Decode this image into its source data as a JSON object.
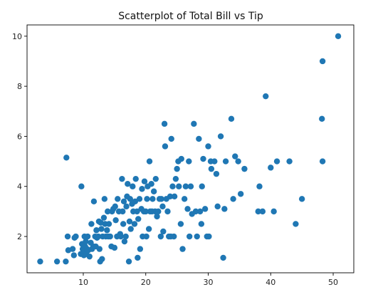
{
  "chart_data": {
    "type": "scatter",
    "title": "Scatterplot of Total Bill vs Tip",
    "xlabel": "",
    "ylabel": "",
    "xlim": [
      1.0,
      53.3
    ],
    "ylim": [
      0.55,
      10.45
    ],
    "xticks": [
      "10",
      "20",
      "30",
      "40",
      "50"
    ],
    "yticks": [
      "2",
      "4",
      "6",
      "8",
      "10"
    ],
    "grid": false,
    "marker_color": "#1f77b4",
    "points": [
      [
        3.1,
        1.0
      ],
      [
        5.8,
        1.0
      ],
      [
        7.2,
        1.0
      ],
      [
        7.3,
        5.15
      ],
      [
        7.5,
        2.0
      ],
      [
        7.6,
        1.45
      ],
      [
        8.3,
        1.5
      ],
      [
        8.5,
        1.25
      ],
      [
        8.6,
        1.95
      ],
      [
        8.8,
        2.0
      ],
      [
        9.6,
        1.3
      ],
      [
        9.7,
        4.0
      ],
      [
        9.8,
        1.7
      ],
      [
        9.9,
        1.5
      ],
      [
        10.0,
        1.4
      ],
      [
        10.1,
        1.25
      ],
      [
        10.2,
        2.0
      ],
      [
        10.3,
        1.6
      ],
      [
        10.4,
        1.8
      ],
      [
        10.5,
        1.3
      ],
      [
        10.6,
        1.5
      ],
      [
        10.7,
        2.0
      ],
      [
        10.8,
        1.45
      ],
      [
        11.0,
        1.2
      ],
      [
        11.2,
        1.75
      ],
      [
        11.3,
        2.5
      ],
      [
        11.4,
        1.5
      ],
      [
        11.6,
        1.6
      ],
      [
        11.7,
        3.4
      ],
      [
        11.9,
        2.0
      ],
      [
        12.0,
        1.6
      ],
      [
        12.1,
        2.25
      ],
      [
        12.2,
        1.95
      ],
      [
        12.4,
        2.0
      ],
      [
        12.5,
        2.6
      ],
      [
        12.6,
        1.5
      ],
      [
        12.7,
        1.0
      ],
      [
        12.8,
        2.55
      ],
      [
        12.9,
        2.3
      ],
      [
        13.0,
        1.1
      ],
      [
        13.1,
        2.0
      ],
      [
        13.3,
        2.75
      ],
      [
        13.4,
        3.5
      ],
      [
        13.5,
        2.5
      ],
      [
        13.6,
        2.0
      ],
      [
        13.8,
        2.25
      ],
      [
        13.9,
        3.0
      ],
      [
        14.0,
        2.0
      ],
      [
        14.1,
        2.5
      ],
      [
        14.3,
        2.0
      ],
      [
        14.5,
        1.6
      ],
      [
        14.6,
        3.0
      ],
      [
        14.8,
        3.1
      ],
      [
        15.0,
        1.55
      ],
      [
        15.1,
        3.2
      ],
      [
        15.2,
        2.65
      ],
      [
        15.4,
        2.0
      ],
      [
        15.5,
        3.5
      ],
      [
        15.7,
        3.0
      ],
      [
        15.9,
        2.1
      ],
      [
        16.0,
        2.0
      ],
      [
        16.2,
        4.3
      ],
      [
        16.3,
        3.0
      ],
      [
        16.4,
        2.5
      ],
      [
        16.5,
        3.4
      ],
      [
        16.6,
        1.8
      ],
      [
        16.8,
        2.0
      ],
      [
        16.9,
        3.2
      ],
      [
        17.0,
        3.6
      ],
      [
        17.1,
        4.1
      ],
      [
        17.3,
        1.0
      ],
      [
        17.4,
        2.6
      ],
      [
        17.5,
        3.5
      ],
      [
        17.6,
        2.3
      ],
      [
        17.8,
        3.3
      ],
      [
        17.9,
        4.0
      ],
      [
        18.0,
        3.0
      ],
      [
        18.2,
        2.5
      ],
      [
        18.3,
        3.4
      ],
      [
        18.4,
        4.3
      ],
      [
        18.6,
        3.0
      ],
      [
        18.7,
        1.15
      ],
      [
        18.8,
        2.7
      ],
      [
        19.0,
        3.5
      ],
      [
        19.1,
        1.5
      ],
      [
        19.3,
        3.1
      ],
      [
        19.4,
        3.9
      ],
      [
        19.5,
        2.0
      ],
      [
        19.7,
        3.0
      ],
      [
        19.8,
        4.2
      ],
      [
        20.0,
        3.0
      ],
      [
        20.1,
        2.0
      ],
      [
        20.2,
        3.5
      ],
      [
        20.3,
        4.0
      ],
      [
        20.5,
        2.3
      ],
      [
        20.6,
        5.0
      ],
      [
        20.7,
        3.0
      ],
      [
        20.9,
        4.1
      ],
      [
        21.0,
        3.0
      ],
      [
        21.1,
        3.5
      ],
      [
        21.3,
        3.8
      ],
      [
        21.5,
        3.0
      ],
      [
        21.6,
        4.3
      ],
      [
        21.8,
        2.8
      ],
      [
        22.0,
        3.0
      ],
      [
        22.2,
        3.5
      ],
      [
        22.4,
        2.0
      ],
      [
        22.5,
        3.5
      ],
      [
        22.7,
        3.2
      ],
      [
        22.8,
        2.2
      ],
      [
        23.0,
        6.5
      ],
      [
        23.1,
        5.6
      ],
      [
        23.3,
        3.5
      ],
      [
        23.5,
        3.0
      ],
      [
        23.7,
        2.0
      ],
      [
        23.9,
        3.6
      ],
      [
        24.0,
        2.0
      ],
      [
        24.1,
        5.9
      ],
      [
        24.3,
        4.0
      ],
      [
        24.5,
        2.0
      ],
      [
        24.6,
        3.6
      ],
      [
        24.8,
        4.3
      ],
      [
        25.0,
        4.7
      ],
      [
        25.2,
        5.0
      ],
      [
        25.3,
        4.0
      ],
      [
        25.6,
        2.5
      ],
      [
        25.7,
        5.1
      ],
      [
        25.9,
        1.5
      ],
      [
        26.2,
        3.5
      ],
      [
        26.4,
        4.0
      ],
      [
        26.7,
        3.1
      ],
      [
        26.9,
        5.0
      ],
      [
        27.0,
        2.0
      ],
      [
        27.2,
        4.0
      ],
      [
        27.4,
        2.9
      ],
      [
        27.7,
        6.5
      ],
      [
        28.0,
        3.0
      ],
      [
        28.2,
        2.0
      ],
      [
        28.5,
        5.9
      ],
      [
        28.7,
        3.0
      ],
      [
        28.9,
        2.5
      ],
      [
        29.0,
        4.0
      ],
      [
        29.2,
        5.1
      ],
      [
        29.5,
        3.1
      ],
      [
        29.8,
        2.0
      ],
      [
        30.0,
        5.6
      ],
      [
        30.1,
        2.0
      ],
      [
        30.4,
        5.0
      ],
      [
        30.5,
        4.7
      ],
      [
        31.0,
        5.0
      ],
      [
        31.3,
        4.5
      ],
      [
        31.5,
        3.2
      ],
      [
        32.0,
        6.0
      ],
      [
        32.4,
        1.15
      ],
      [
        32.6,
        3.1
      ],
      [
        32.8,
        5.0
      ],
      [
        33.7,
        6.7
      ],
      [
        34.0,
        3.5
      ],
      [
        34.3,
        5.2
      ],
      [
        34.8,
        5.0
      ],
      [
        35.2,
        3.7
      ],
      [
        35.8,
        4.7
      ],
      [
        38.0,
        3.0
      ],
      [
        38.2,
        4.0
      ],
      [
        38.7,
        3.0
      ],
      [
        39.2,
        7.6
      ],
      [
        40.0,
        4.75
      ],
      [
        40.5,
        3.0
      ],
      [
        41.0,
        5.0
      ],
      [
        43.0,
        5.0
      ],
      [
        44.0,
        2.5
      ],
      [
        45.0,
        3.5
      ],
      [
        48.2,
        6.7
      ],
      [
        48.3,
        5.0
      ],
      [
        48.3,
        9.0
      ],
      [
        50.8,
        10.0
      ]
    ]
  }
}
